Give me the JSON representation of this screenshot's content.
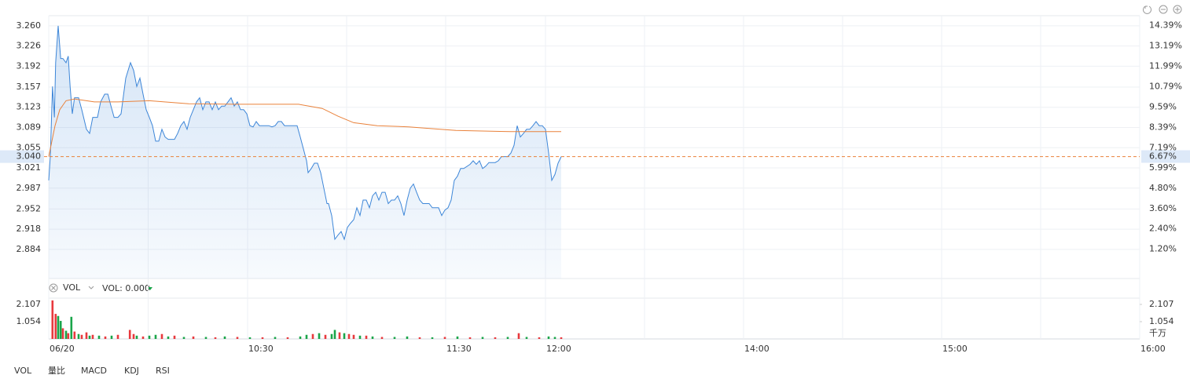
{
  "chart_data": [
    {
      "type": "line",
      "ylim": [
        2.835,
        3.277
      ],
      "yticks": [
        {
          "value": 3.26,
          "label": "3.260"
        },
        3.226,
        3.192,
        3.157,
        3.123,
        3.089,
        3.055,
        3.021,
        2.987,
        2.952,
        2.918,
        2.884
      ],
      "y2lim": [
        -0.53,
        14.98
      ],
      "y2ticks": [
        {
          "value": 14.39,
          "label": "14.39%"
        },
        {
          "value": 13.19,
          "label": "13.19%"
        },
        {
          "value": 11.99,
          "label": "11.99%"
        },
        {
          "value": 10.79,
          "label": "10.79%"
        },
        {
          "value": 9.59,
          "label": "9.59%"
        },
        {
          "value": 8.39,
          "label": "8.39%"
        },
        {
          "value": 7.19,
          "label": "7.19%"
        },
        {
          "value": 5.99,
          "label": "5.99%"
        },
        {
          "value": 4.8,
          "label": "4.80%"
        },
        {
          "value": 3.6,
          "label": "3.60%"
        },
        {
          "value": 2.4,
          "label": "2.40%"
        },
        {
          "value": 1.2,
          "label": "1.20%"
        }
      ],
      "last_price": {
        "value": 3.04,
        "label": "3.040"
      },
      "last_pct": {
        "value": 6.67,
        "label": "6.67%"
      },
      "grid": true,
      "series": [
        {
          "color": "#3d86d8",
          "x": [
            0,
            0.5,
            1.2,
            1.8,
            2.2,
            3,
            3.8,
            4.5,
            5.5,
            6.2,
            6.8,
            7.5,
            8.2,
            9.5,
            10.5,
            12,
            13,
            14,
            15.5,
            16.5,
            17.8,
            18.8,
            19.8,
            20.8,
            22,
            23,
            24.5,
            26,
            27,
            28,
            29,
            30,
            31,
            32,
            33,
            34,
            35,
            36,
            37,
            38,
            40,
            41,
            42,
            43,
            44,
            45,
            46,
            47,
            48,
            49,
            50,
            51,
            52,
            53,
            54,
            55,
            56,
            57,
            58,
            59,
            60,
            61,
            62,
            63,
            64,
            65,
            66,
            67,
            70,
            71,
            72,
            73,
            74,
            75,
            79,
            80,
            81,
            82,
            82.5,
            83.5,
            84.5,
            85.5,
            86.5,
            87.5,
            88.5,
            89,
            90,
            91,
            92,
            93,
            94,
            95,
            96,
            97,
            98,
            99,
            100,
            101,
            102,
            103,
            104,
            105,
            106,
            107,
            108,
            109,
            110,
            111,
            112,
            113,
            114,
            115,
            116,
            117,
            118,
            119,
            121,
            122,
            124,
            125,
            126,
            127,
            128,
            129,
            130,
            131,
            132,
            134,
            135,
            136,
            137,
            138,
            139,
            140,
            142,
            143,
            144,
            146,
            147,
            148,
            149,
            150,
            151,
            152,
            153,
            154,
            155,
            156,
            157,
            158,
            159,
            160,
            161,
            162,
            163
          ],
          "values": [
            3.0,
            3.04,
            3.158,
            3.106,
            3.198,
            3.26,
            3.205,
            3.205,
            3.198,
            3.209,
            3.158,
            3.112,
            3.139,
            3.139,
            3.119,
            3.086,
            3.079,
            3.106,
            3.106,
            3.132,
            3.145,
            3.145,
            3.125,
            3.106,
            3.106,
            3.112,
            3.172,
            3.198,
            3.185,
            3.158,
            3.172,
            3.145,
            3.119,
            3.106,
            3.092,
            3.066,
            3.066,
            3.086,
            3.073,
            3.069,
            3.069,
            3.079,
            3.092,
            3.099,
            3.086,
            3.106,
            3.119,
            3.132,
            3.139,
            3.119,
            3.132,
            3.132,
            3.119,
            3.132,
            3.119,
            3.125,
            3.125,
            3.132,
            3.139,
            3.125,
            3.132,
            3.119,
            3.119,
            3.112,
            3.092,
            3.09,
            3.099,
            3.092,
            3.092,
            3.09,
            3.092,
            3.099,
            3.099,
            3.092,
            3.092,
            3.073,
            3.053,
            3.033,
            3.013,
            3.02,
            3.029,
            3.029,
            3.013,
            2.987,
            2.961,
            2.961,
            2.941,
            2.901,
            2.908,
            2.914,
            2.901,
            2.921,
            2.928,
            2.934,
            2.954,
            2.941,
            2.967,
            2.967,
            2.954,
            2.974,
            2.98,
            2.967,
            2.98,
            2.98,
            2.961,
            2.967,
            2.967,
            2.974,
            2.961,
            2.941,
            2.967,
            2.987,
            2.994,
            2.98,
            2.967,
            2.961,
            2.961,
            2.954,
            2.954,
            2.941,
            2.95,
            2.954,
            2.967,
            3.0,
            3.007,
            3.02,
            3.02,
            3.027,
            3.033,
            3.027,
            3.033,
            3.02,
            3.024,
            3.03,
            3.03,
            3.033,
            3.04,
            3.04,
            3.046,
            3.059,
            3.092,
            3.073,
            3.079,
            3.086,
            3.086,
            3.092,
            3.099,
            3.092,
            3.092,
            3.086,
            3.046,
            3.0,
            3.01,
            3.029,
            3.04
          ]
        },
        {
          "color": "#e9813a",
          "x": [
            0,
            2,
            3.5,
            5.5,
            8.2,
            14.5,
            22,
            32,
            44.5,
            59.5,
            79.5,
            87,
            92,
            97,
            104.5,
            114.5,
            129.5,
            147,
            163
          ],
          "values": [
            3.04,
            3.092,
            3.119,
            3.134,
            3.137,
            3.132,
            3.132,
            3.134,
            3.129,
            3.128,
            3.128,
            3.121,
            3.108,
            3.097,
            3.092,
            3.09,
            3.084,
            3.082,
            3.082
          ]
        }
      ]
    },
    {
      "type": "bar",
      "header": "VOL",
      "readout": "VOL: 0.000",
      "readout_color": "#e9813a",
      "unit_label": "千万",
      "xlim": [
        0,
        347
      ],
      "xticks": [
        {
          "value": 0,
          "label": "06/20"
        },
        {
          "value": 63.25,
          "label": "10:30"
        },
        {
          "value": 126.25,
          "label": "11:30"
        },
        {
          "value": 158,
          "label": "12:00"
        },
        {
          "value": 221,
          "label": "14:00"
        },
        {
          "value": 284,
          "label": "15:00"
        },
        {
          "value": 347,
          "label": "16:00"
        }
      ],
      "ylim": [
        0,
        2.49
      ],
      "yticks": [
        2.107,
        1.054
      ],
      "x": [
        1.2,
        2.2,
        3,
        3.8,
        4.5,
        5.5,
        6.2,
        7.2,
        8.2,
        9.5,
        10.5,
        12,
        13,
        14,
        16,
        18,
        20,
        22,
        25.8,
        27,
        28,
        30,
        32,
        34,
        36,
        38,
        40,
        43,
        46,
        50,
        53,
        56,
        60,
        64,
        68,
        72,
        76,
        80,
        82,
        84,
        86,
        88,
        90,
        91,
        92.5,
        94,
        95.5,
        97,
        99,
        101,
        103,
        106,
        110,
        114,
        118,
        122,
        126,
        130,
        134,
        138,
        142,
        146,
        149.5,
        152,
        156,
        159,
        161,
        163
      ],
      "values": [
        2.35,
        1.53,
        1.4,
        1.1,
        0.65,
        0.5,
        0.35,
        1.35,
        0.45,
        0.3,
        0.25,
        0.4,
        0.2,
        0.25,
        0.2,
        0.15,
        0.2,
        0.25,
        0.55,
        0.3,
        0.2,
        0.15,
        0.2,
        0.25,
        0.3,
        0.15,
        0.2,
        0.12,
        0.15,
        0.12,
        0.1,
        0.15,
        0.12,
        0.1,
        0.1,
        0.12,
        0.1,
        0.15,
        0.25,
        0.3,
        0.35,
        0.25,
        0.3,
        0.55,
        0.4,
        0.35,
        0.3,
        0.25,
        0.2,
        0.2,
        0.15,
        0.12,
        0.12,
        0.15,
        0.1,
        0.1,
        0.12,
        0.15,
        0.1,
        0.12,
        0.1,
        0.12,
        0.35,
        0.12,
        0.1,
        0.15,
        0.12,
        0.1
      ],
      "colors": [
        "#e8393e",
        "#e8393e",
        "#1aa54a",
        "#1aa54a",
        "#e8393e",
        "#1aa54a",
        "#e8393e",
        "#1aa54a",
        "#e8393e",
        "#1aa54a",
        "#e8393e",
        "#e8393e",
        "#1aa54a",
        "#e8393e",
        "#1aa54a",
        "#e8393e",
        "#1aa54a",
        "#e8393e",
        "#e8393e",
        "#e8393e",
        "#1aa54a",
        "#e8393e",
        "#1aa54a",
        "#1aa54a",
        "#e8393e",
        "#1aa54a",
        "#e8393e",
        "#1aa54a",
        "#e8393e",
        "#1aa54a",
        "#e8393e",
        "#1aa54a",
        "#e8393e",
        "#1aa54a",
        "#e8393e",
        "#1aa54a",
        "#e8393e",
        "#1aa54a",
        "#1aa54a",
        "#e8393e",
        "#1aa54a",
        "#e8393e",
        "#1aa54a",
        "#1aa54a",
        "#e8393e",
        "#1aa54a",
        "#e8393e",
        "#e8393e",
        "#1aa54a",
        "#e8393e",
        "#1aa54a",
        "#e8393e",
        "#1aa54a",
        "#1aa54a",
        "#e8393e",
        "#1aa54a",
        "#e8393e",
        "#1aa54a",
        "#e8393e",
        "#1aa54a",
        "#e8393e",
        "#1aa54a",
        "#e8393e",
        "#1aa54a",
        "#e8393e",
        "#1aa54a",
        "#1aa54a",
        "#e8393e"
      ]
    }
  ],
  "tabs": [
    "VOL",
    "量比",
    "MACD",
    "KDJ",
    "RSI"
  ],
  "active_tab": 0
}
